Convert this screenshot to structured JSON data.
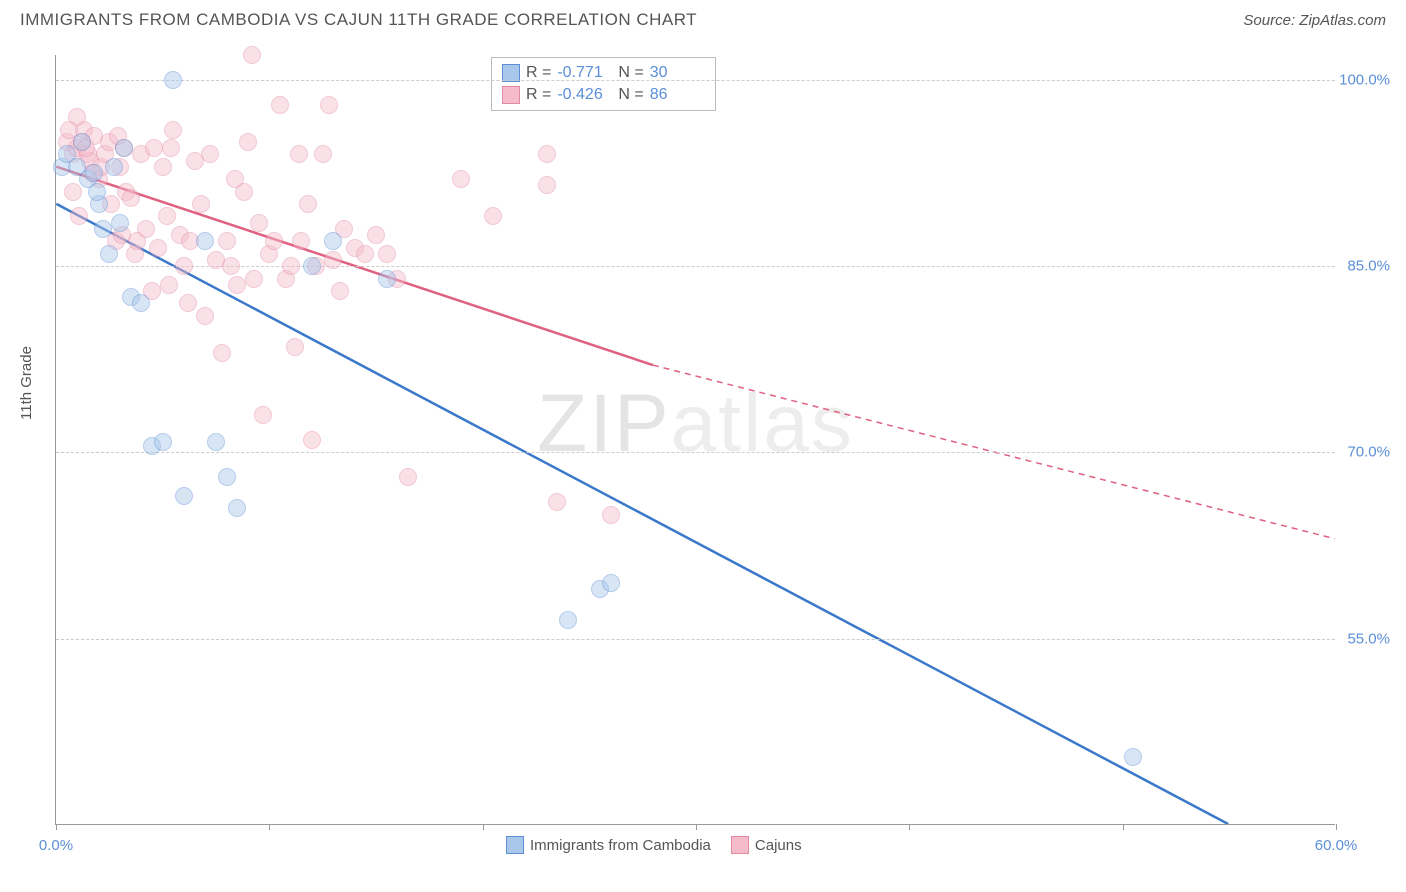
{
  "title": "IMMIGRANTS FROM CAMBODIA VS CAJUN 11TH GRADE CORRELATION CHART",
  "source_prefix": "Source: ",
  "source_name": "ZipAtlas.com",
  "watermark": "ZIPatlas",
  "yaxis_label": "11th Grade",
  "chart": {
    "type": "scatter",
    "background_color": "#ffffff",
    "grid_color": "#cccccc",
    "axis_color": "#999999",
    "tick_label_color": "#5b8fd6",
    "xlim": [
      0,
      60
    ],
    "ylim": [
      40,
      102
    ],
    "x_ticks": [
      0,
      10,
      20,
      30,
      40,
      50,
      60
    ],
    "x_tick_labels": {
      "0": "0.0%",
      "60": "60.0%"
    },
    "y_gridlines": [
      55,
      70,
      85,
      100
    ],
    "y_tick_labels": {
      "55": "55.0%",
      "70": "70.0%",
      "85": "85.0%",
      "100": "100.0%"
    },
    "marker_radius": 9,
    "marker_opacity": 0.45,
    "marker_border_width": 1
  },
  "series": [
    {
      "id": "cambodia",
      "name": "Immigrants from Cambodia",
      "color_fill": "#a8c7eb",
      "color_border": "#5b8fd6",
      "trend_color": "#3b78c9",
      "trend_width": 2.5,
      "R": "-0.771",
      "N": "30",
      "trend": {
        "x1": 0,
        "y1": 90,
        "x2": 55,
        "y2": 40
      },
      "points": [
        [
          0.3,
          93
        ],
        [
          0.5,
          94
        ],
        [
          1.0,
          93
        ],
        [
          1.2,
          95
        ],
        [
          1.5,
          92
        ],
        [
          1.8,
          92.5
        ],
        [
          2.0,
          90
        ],
        [
          2.2,
          88
        ],
        [
          2.5,
          86
        ],
        [
          3.0,
          88.5
        ],
        [
          3.5,
          82.5
        ],
        [
          4.0,
          82
        ],
        [
          4.5,
          70.5
        ],
        [
          5.0,
          70.8
        ],
        [
          5.5,
          100
        ],
        [
          6.0,
          66.5
        ],
        [
          7.0,
          87
        ],
        [
          7.5,
          70.8
        ],
        [
          8.0,
          68
        ],
        [
          8.5,
          65.5
        ],
        [
          12.0,
          85
        ],
        [
          13.0,
          87
        ],
        [
          15.5,
          84
        ],
        [
          24.0,
          56.5
        ],
        [
          25.5,
          59
        ],
        [
          26.0,
          59.5
        ],
        [
          50.5,
          45.5
        ],
        [
          3.2,
          94.5
        ],
        [
          2.7,
          93
        ],
        [
          1.9,
          91
        ]
      ]
    },
    {
      "id": "cajuns",
      "name": "Cajuns",
      "color_fill": "#f4bccb",
      "color_border": "#e28aa4",
      "trend_color": "#e0607f",
      "trend_width": 2.5,
      "R": "-0.426",
      "N": "86",
      "trend": {
        "x1": 0,
        "y1": 93,
        "x2": 28,
        "y2": 77
      },
      "trend_ext": {
        "x1": 28,
        "y1": 77,
        "x2": 60,
        "y2": 63
      },
      "points": [
        [
          0.5,
          95
        ],
        [
          0.8,
          94
        ],
        [
          1.0,
          94.5
        ],
        [
          1.2,
          95
        ],
        [
          1.3,
          96
        ],
        [
          1.5,
          94
        ],
        [
          1.6,
          93.5
        ],
        [
          1.8,
          95.5
        ],
        [
          2.0,
          92
        ],
        [
          2.1,
          93
        ],
        [
          2.3,
          94
        ],
        [
          2.5,
          95
        ],
        [
          2.6,
          90
        ],
        [
          2.8,
          87
        ],
        [
          3.0,
          93
        ],
        [
          3.2,
          94.5
        ],
        [
          3.3,
          91
        ],
        [
          3.5,
          90.5
        ],
        [
          3.7,
          86
        ],
        [
          3.8,
          87
        ],
        [
          4.0,
          94
        ],
        [
          4.2,
          88
        ],
        [
          4.5,
          83
        ],
        [
          4.8,
          86.5
        ],
        [
          5.0,
          93
        ],
        [
          5.2,
          89
        ],
        [
          5.5,
          96
        ],
        [
          5.8,
          87.5
        ],
        [
          6.0,
          85
        ],
        [
          6.2,
          82
        ],
        [
          6.5,
          93.5
        ],
        [
          6.8,
          90
        ],
        [
          7.0,
          81
        ],
        [
          7.2,
          94
        ],
        [
          7.5,
          85.5
        ],
        [
          7.8,
          78
        ],
        [
          8.0,
          87
        ],
        [
          8.2,
          85
        ],
        [
          8.5,
          83.5
        ],
        [
          8.8,
          91
        ],
        [
          9.0,
          95
        ],
        [
          9.2,
          102
        ],
        [
          9.5,
          88.5
        ],
        [
          9.7,
          73
        ],
        [
          10.0,
          86
        ],
        [
          10.2,
          87
        ],
        [
          10.5,
          98
        ],
        [
          10.8,
          84
        ],
        [
          11.0,
          85
        ],
        [
          11.2,
          78.5
        ],
        [
          11.5,
          87
        ],
        [
          11.8,
          90
        ],
        [
          12.0,
          71
        ],
        [
          12.2,
          85
        ],
        [
          12.5,
          94
        ],
        [
          12.8,
          98
        ],
        [
          13.0,
          85.5
        ],
        [
          13.3,
          83
        ],
        [
          13.5,
          88
        ],
        [
          14.0,
          86.5
        ],
        [
          14.5,
          86
        ],
        [
          15.0,
          87.5
        ],
        [
          15.5,
          86
        ],
        [
          16.0,
          84
        ],
        [
          16.5,
          68
        ],
        [
          19.0,
          92
        ],
        [
          20.5,
          89
        ],
        [
          23.0,
          94
        ],
        [
          23.0,
          91.5
        ],
        [
          23.5,
          66
        ],
        [
          26.0,
          65
        ],
        [
          1.0,
          97
        ],
        [
          1.4,
          94.5
        ],
        [
          1.7,
          92.5
        ],
        [
          0.6,
          96
        ],
        [
          0.8,
          91
        ],
        [
          1.1,
          89
        ],
        [
          2.9,
          95.5
        ],
        [
          3.1,
          87.5
        ],
        [
          4.6,
          94.5
        ],
        [
          5.3,
          83.5
        ],
        [
          5.4,
          94.5
        ],
        [
          6.3,
          87
        ],
        [
          8.4,
          92
        ],
        [
          9.3,
          84
        ],
        [
          11.4,
          94
        ]
      ]
    }
  ],
  "stats_legend": {
    "R_label": "R =",
    "N_label": "N ="
  },
  "bottom_legend": {
    "items": [
      "cambodia",
      "cajuns"
    ]
  }
}
